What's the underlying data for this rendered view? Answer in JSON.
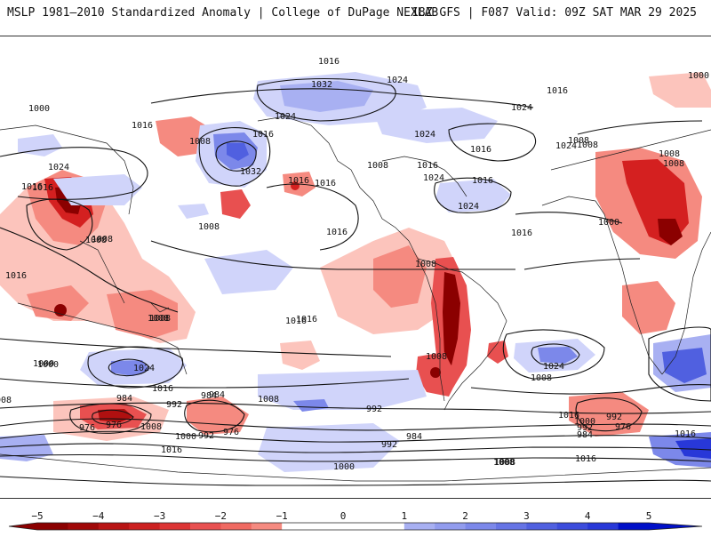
{
  "header": {
    "title": "MSLP 1981–2010 Standardized Anomaly | College of DuPage NEXLAB",
    "run_info": "18Z GFS | F087 Valid: 09Z SAT MAR 29 2025"
  },
  "colorbar": {
    "ticks": [
      "−5",
      "−4",
      "−3",
      "−2",
      "−1",
      "0",
      "1",
      "2",
      "3",
      "4",
      "5"
    ],
    "colors_negative": [
      "#8b0000",
      "#b01010",
      "#d42020",
      "#e85050",
      "#f58a80",
      "#fcc4bc"
    ],
    "colors_positive": [
      "#d0d4fa",
      "#a8b0f2",
      "#7c88ea",
      "#5060e0",
      "#2838d8",
      "#0010c8"
    ]
  },
  "isobar_labels": [
    "1016",
    "1024",
    "1032",
    "1000",
    "1016",
    "1008",
    "1024",
    "1016",
    "1032",
    "1024",
    "1016",
    "1024",
    "1008",
    "1024",
    "1000",
    "1016",
    "1008",
    "1024",
    "1016",
    "1008",
    "1016",
    "1008",
    "1008",
    "1016",
    "1016",
    "1024",
    "1016",
    "1008",
    "1008",
    "1016",
    "1008",
    "1016",
    "1016",
    "1008",
    "1000",
    "1024",
    "1016",
    "1016",
    "1000",
    "1008",
    "1008",
    "992",
    "984",
    "976",
    "1008",
    "1024",
    "1016",
    "992",
    "984",
    "976",
    "984",
    "992",
    "1000",
    "976",
    "1008",
    "1000",
    "992",
    "984",
    "1000",
    "1016",
    "1008",
    "992",
    "1008",
    "1016",
    "992",
    "984",
    "976",
    "1024",
    "1016",
    "1008",
    "1016",
    "1000",
    "1016",
    "1008",
    "1008"
  ]
}
